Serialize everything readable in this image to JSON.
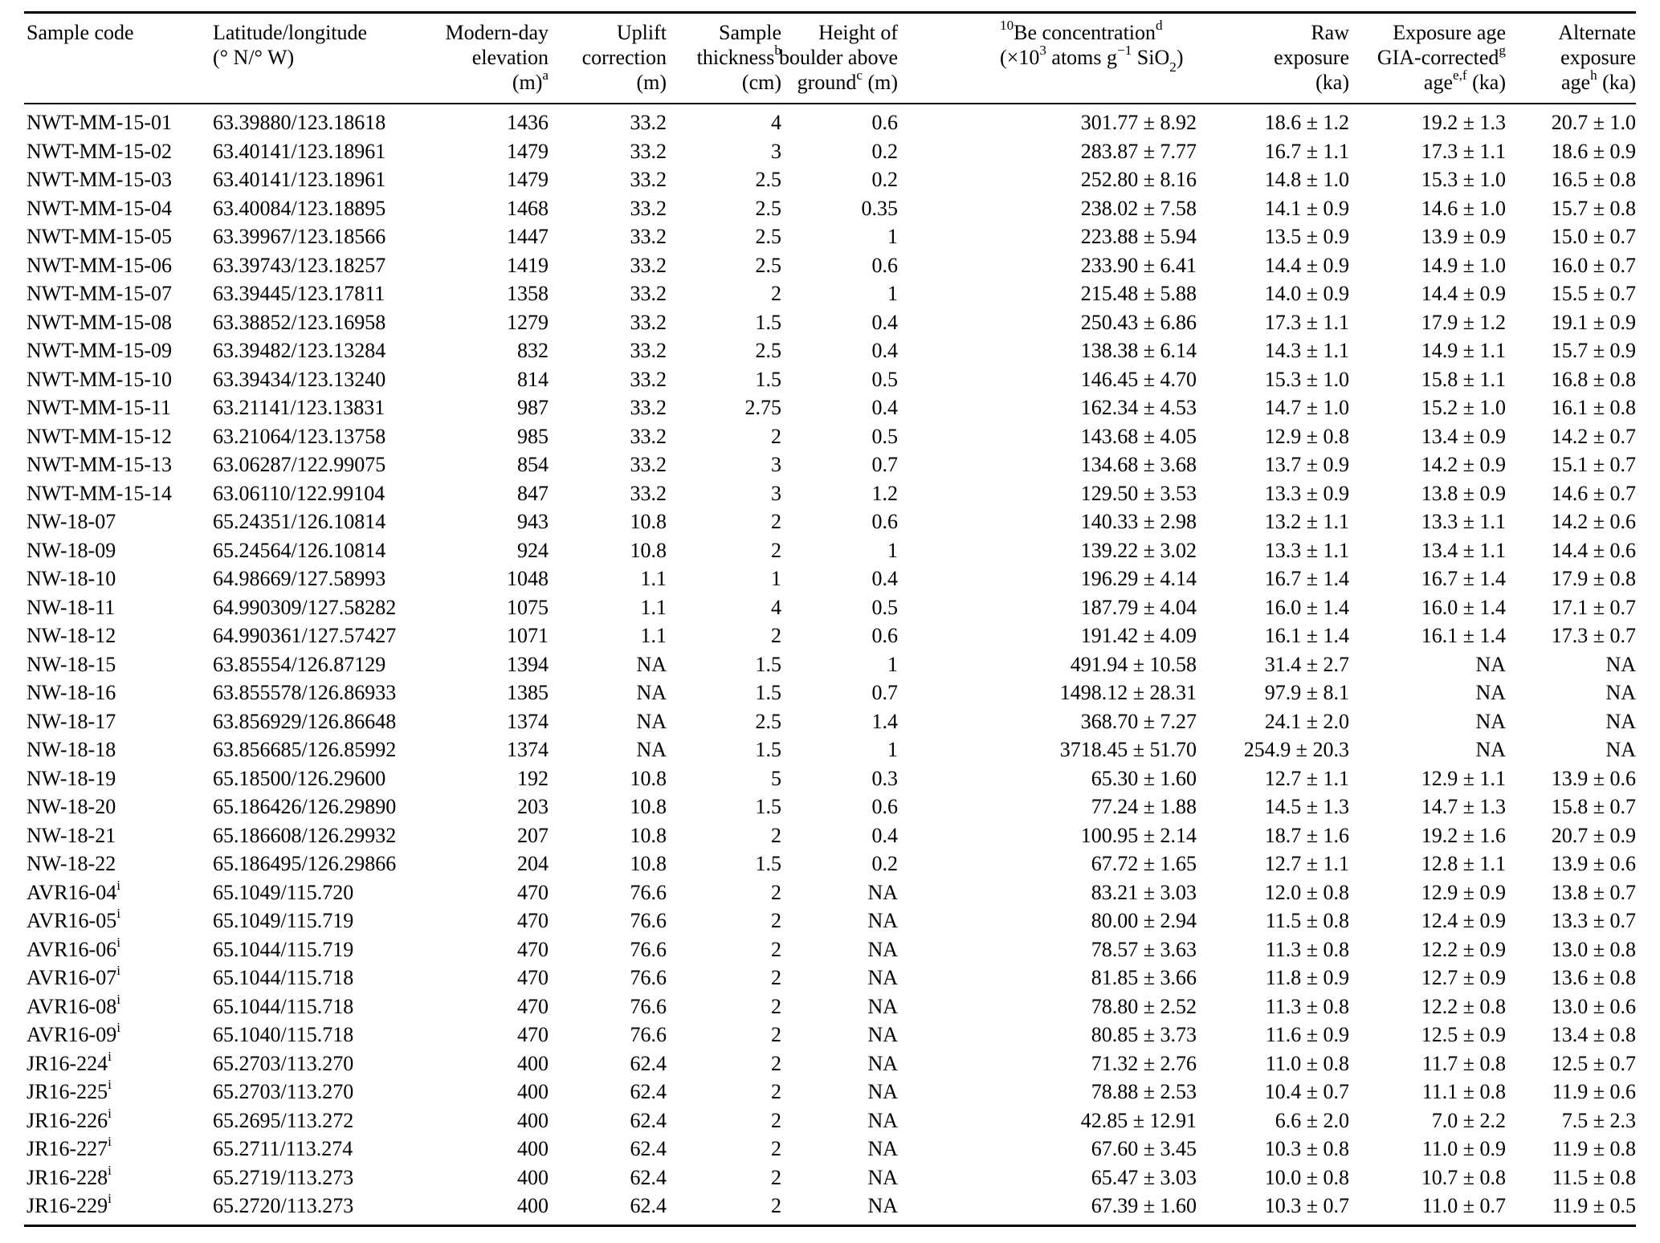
{
  "table": {
    "columns": [
      {
        "id": "sample-code",
        "lines": [
          "Sample code"
        ]
      },
      {
        "id": "lat-long",
        "lines": [
          "Latitude/longitude",
          "(° N/° W)"
        ]
      },
      {
        "id": "elevation",
        "lines": [
          "Modern-day",
          "elevation",
          "(m)^{a}"
        ]
      },
      {
        "id": "uplift-correction",
        "lines": [
          "Uplift",
          "correction",
          "(m)"
        ]
      },
      {
        "id": "sample-thickness",
        "lines": [
          "Sample",
          "thickness^{b}",
          "(cm)"
        ]
      },
      {
        "id": "boulder-height",
        "lines": [
          "Height of",
          "boulder above",
          "ground^{c} (m)"
        ]
      },
      {
        "id": "be10-concentration",
        "lines": [
          "^{10}Be concentration^{d}",
          "(×10^{3} atoms g^{−1} SiO_{2})"
        ]
      },
      {
        "id": "raw-exposure",
        "lines": [
          "Raw",
          "exposure",
          "(ka)"
        ]
      },
      {
        "id": "gia-corrected-age",
        "lines": [
          "Exposure age",
          "GIA-corrected^{g}",
          "age^{e,f} (ka)"
        ]
      },
      {
        "id": "alternate-age",
        "lines": [
          "Alternate",
          "exposure",
          "age^{h} (ka)"
        ]
      }
    ],
    "rows": [
      [
        "NWT-MM-15-01",
        "63.39880/123.18618",
        "1436",
        "33.2",
        "4",
        "0.6",
        "301.77 ± 8.92",
        "18.6 ± 1.2",
        "19.2 ± 1.3",
        "20.7 ± 1.0"
      ],
      [
        "NWT-MM-15-02",
        "63.40141/123.18961",
        "1479",
        "33.2",
        "3",
        "0.2",
        "283.87 ± 7.77",
        "16.7 ± 1.1",
        "17.3 ± 1.1",
        "18.6 ± 0.9"
      ],
      [
        "NWT-MM-15-03",
        "63.40141/123.18961",
        "1479",
        "33.2",
        "2.5",
        "0.2",
        "252.80 ± 8.16",
        "14.8 ± 1.0",
        "15.3 ± 1.0",
        "16.5 ± 0.8"
      ],
      [
        "NWT-MM-15-04",
        "63.40084/123.18895",
        "1468",
        "33.2",
        "2.5",
        "0.35",
        "238.02 ± 7.58",
        "14.1 ± 0.9",
        "14.6 ± 1.0",
        "15.7 ± 0.8"
      ],
      [
        "NWT-MM-15-05",
        "63.39967/123.18566",
        "1447",
        "33.2",
        "2.5",
        "1",
        "223.88 ± 5.94",
        "13.5 ± 0.9",
        "13.9 ± 0.9",
        "15.0 ± 0.7"
      ],
      [
        "NWT-MM-15-06",
        "63.39743/123.18257",
        "1419",
        "33.2",
        "2.5",
        "0.6",
        "233.90 ± 6.41",
        "14.4 ± 0.9",
        "14.9 ± 1.0",
        "16.0 ± 0.7"
      ],
      [
        "NWT-MM-15-07",
        "63.39445/123.17811",
        "1358",
        "33.2",
        "2",
        "1",
        "215.48 ± 5.88",
        "14.0 ± 0.9",
        "14.4 ± 0.9",
        "15.5 ± 0.7"
      ],
      [
        "NWT-MM-15-08",
        "63.38852/123.16958",
        "1279",
        "33.2",
        "1.5",
        "0.4",
        "250.43 ± 6.86",
        "17.3 ± 1.1",
        "17.9 ± 1.2",
        "19.1 ± 0.9"
      ],
      [
        "NWT-MM-15-09",
        "63.39482/123.13284",
        "832",
        "33.2",
        "2.5",
        "0.4",
        "138.38 ± 6.14",
        "14.3 ± 1.1",
        "14.9 ± 1.1",
        "15.7 ± 0.9"
      ],
      [
        "NWT-MM-15-10",
        "63.39434/123.13240",
        "814",
        "33.2",
        "1.5",
        "0.5",
        "146.45 ± 4.70",
        "15.3 ± 1.0",
        "15.8 ± 1.1",
        "16.8 ± 0.8"
      ],
      [
        "NWT-MM-15-11",
        "63.21141/123.13831",
        "987",
        "33.2",
        "2.75",
        "0.4",
        "162.34 ± 4.53",
        "14.7 ± 1.0",
        "15.2 ± 1.0",
        "16.1 ± 0.8"
      ],
      [
        "NWT-MM-15-12",
        "63.21064/123.13758",
        "985",
        "33.2",
        "2",
        "0.5",
        "143.68 ± 4.05",
        "12.9 ± 0.8",
        "13.4 ± 0.9",
        "14.2 ± 0.7"
      ],
      [
        "NWT-MM-15-13",
        "63.06287/122.99075",
        "854",
        "33.2",
        "3",
        "0.7",
        "134.68 ± 3.68",
        "13.7 ± 0.9",
        "14.2 ± 0.9",
        "15.1 ± 0.7"
      ],
      [
        "NWT-MM-15-14",
        "63.06110/122.99104",
        "847",
        "33.2",
        "3",
        "1.2",
        "129.50 ± 3.53",
        "13.3 ± 0.9",
        "13.8 ± 0.9",
        "14.6 ± 0.7"
      ],
      [
        "NW-18-07",
        "65.24351/126.10814",
        "943",
        "10.8",
        "2",
        "0.6",
        "140.33 ± 2.98",
        "13.2 ± 1.1",
        "13.3 ± 1.1",
        "14.2 ± 0.6"
      ],
      [
        "NW-18-09",
        "65.24564/126.10814",
        "924",
        "10.8",
        "2",
        "1",
        "139.22 ± 3.02",
        "13.3 ± 1.1",
        "13.4 ± 1.1",
        "14.4 ± 0.6"
      ],
      [
        "NW-18-10",
        "64.98669/127.58993",
        "1048",
        "1.1",
        "1",
        "0.4",
        "196.29 ± 4.14",
        "16.7 ± 1.4",
        "16.7 ± 1.4",
        "17.9 ± 0.8"
      ],
      [
        "NW-18-11",
        "64.990309/127.58282",
        "1075",
        "1.1",
        "4",
        "0.5",
        "187.79 ± 4.04",
        "16.0 ± 1.4",
        "16.0 ± 1.4",
        "17.1 ± 0.7"
      ],
      [
        "NW-18-12",
        "64.990361/127.57427",
        "1071",
        "1.1",
        "2",
        "0.6",
        "191.42 ± 4.09",
        "16.1 ± 1.4",
        "16.1 ± 1.4",
        "17.3 ± 0.7"
      ],
      [
        "NW-18-15",
        "63.85554/126.87129",
        "1394",
        "NA",
        "1.5",
        "1",
        "491.94 ± 10.58",
        "31.4 ± 2.7",
        "NA",
        "NA"
      ],
      [
        "NW-18-16",
        "63.855578/126.86933",
        "1385",
        "NA",
        "1.5",
        "0.7",
        "1498.12 ± 28.31",
        "97.9 ± 8.1",
        "NA",
        "NA"
      ],
      [
        "NW-18-17",
        "63.856929/126.86648",
        "1374",
        "NA",
        "2.5",
        "1.4",
        "368.70 ± 7.27",
        "24.1 ± 2.0",
        "NA",
        "NA"
      ],
      [
        "NW-18-18",
        "63.856685/126.85992",
        "1374",
        "NA",
        "1.5",
        "1",
        "3718.45 ± 51.70",
        "254.9 ± 20.3",
        "NA",
        "NA"
      ],
      [
        "NW-18-19",
        "65.18500/126.29600",
        "192",
        "10.8",
        "5",
        "0.3",
        "65.30 ± 1.60",
        "12.7 ± 1.1",
        "12.9 ± 1.1",
        "13.9 ± 0.6"
      ],
      [
        "NW-18-20",
        "65.186426/126.29890",
        "203",
        "10.8",
        "1.5",
        "0.6",
        "77.24 ± 1.88",
        "14.5 ± 1.3",
        "14.7 ± 1.3",
        "15.8 ± 0.7"
      ],
      [
        "NW-18-21",
        "65.186608/126.29932",
        "207",
        "10.8",
        "2",
        "0.4",
        "100.95 ± 2.14",
        "18.7 ± 1.6",
        "19.2 ± 1.6",
        "20.7 ± 0.9"
      ],
      [
        "NW-18-22",
        "65.186495/126.29866",
        "204",
        "10.8",
        "1.5",
        "0.2",
        "67.72 ± 1.65",
        "12.7 ± 1.1",
        "12.8 ± 1.1",
        "13.9 ± 0.6"
      ],
      [
        "AVR16-04^{i}",
        "65.1049/115.720",
        "470",
        "76.6",
        "2",
        "NA",
        "83.21 ± 3.03",
        "12.0 ± 0.8",
        "12.9 ± 0.9",
        "13.8 ± 0.7"
      ],
      [
        "AVR16-05^{i}",
        "65.1049/115.719",
        "470",
        "76.6",
        "2",
        "NA",
        "80.00 ± 2.94",
        "11.5 ± 0.8",
        "12.4 ± 0.9",
        "13.3 ± 0.7"
      ],
      [
        "AVR16-06^{i}",
        "65.1044/115.719",
        "470",
        "76.6",
        "2",
        "NA",
        "78.57 ± 3.63",
        "11.3 ± 0.8",
        "12.2 ± 0.9",
        "13.0 ± 0.8"
      ],
      [
        "AVR16-07^{i}",
        "65.1044/115.718",
        "470",
        "76.6",
        "2",
        "NA",
        "81.85 ± 3.66",
        "11.8 ± 0.9",
        "12.7 ± 0.9",
        "13.6 ± 0.8"
      ],
      [
        "AVR16-08^{i}",
        "65.1044/115.718",
        "470",
        "76.6",
        "2",
        "NA",
        "78.80 ± 2.52",
        "11.3 ± 0.8",
        "12.2 ± 0.8",
        "13.0 ± 0.6"
      ],
      [
        "AVR16-09^{i}",
        "65.1040/115.718",
        "470",
        "76.6",
        "2",
        "NA",
        "80.85 ± 3.73",
        "11.6 ± 0.9",
        "12.5 ± 0.9",
        "13.4 ± 0.8"
      ],
      [
        "JR16-224^{i}",
        "65.2703/113.270",
        "400",
        "62.4",
        "2",
        "NA",
        "71.32 ± 2.76",
        "11.0 ± 0.8",
        "11.7 ± 0.8",
        "12.5 ± 0.7"
      ],
      [
        "JR16-225^{i}",
        "65.2703/113.270",
        "400",
        "62.4",
        "2",
        "NA",
        "78.88 ± 2.53",
        "10.4 ± 0.7",
        "11.1 ± 0.8",
        "11.9 ± 0.6"
      ],
      [
        "JR16-226^{i}",
        "65.2695/113.272",
        "400",
        "62.4",
        "2",
        "NA",
        "42.85 ± 12.91",
        "6.6 ± 2.0",
        "7.0 ± 2.2",
        "7.5 ± 2.3"
      ],
      [
        "JR16-227^{i}",
        "65.2711/113.274",
        "400",
        "62.4",
        "2",
        "NA",
        "67.60 ± 3.45",
        "10.3 ± 0.8",
        "11.0 ± 0.9",
        "11.9 ± 0.8"
      ],
      [
        "JR16-228^{i}",
        "65.2719/113.273",
        "400",
        "62.4",
        "2",
        "NA",
        "65.47 ± 3.03",
        "10.0 ± 0.8",
        "10.7 ± 0.8",
        "11.5 ± 0.8"
      ],
      [
        "JR16-229^{i}",
        "65.2720/113.273",
        "400",
        "62.4",
        "2",
        "NA",
        "67.39 ± 1.60",
        "10.3 ± 0.7",
        "11.0 ± 0.7",
        "11.9 ± 0.5"
      ]
    ]
  }
}
